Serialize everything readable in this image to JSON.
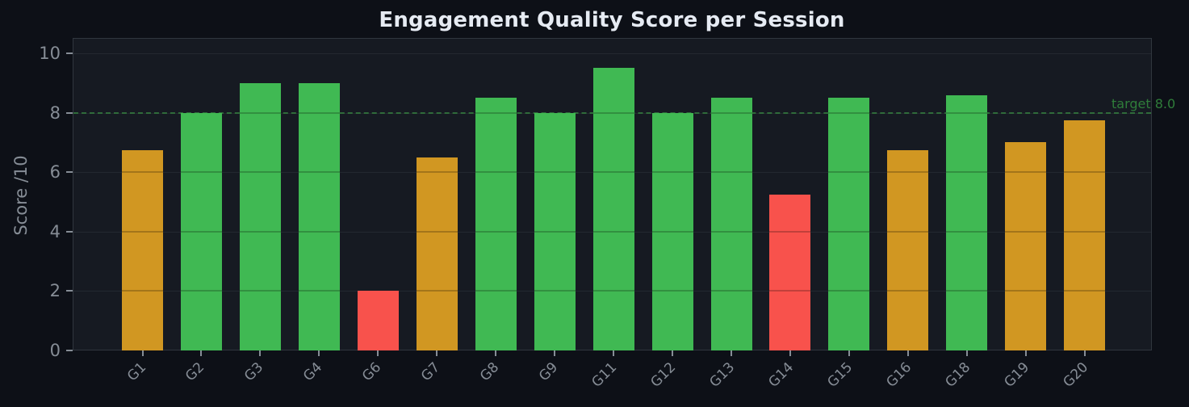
{
  "chart_data": {
    "type": "bar",
    "title": "Engagement Quality Score per Session",
    "xlabel": "",
    "ylabel": "Score /10",
    "ylim": [
      0,
      10.5
    ],
    "yticks": [
      0,
      2,
      4,
      6,
      8,
      10
    ],
    "grid": true,
    "categories": [
      "G1",
      "G2",
      "G3",
      "G4",
      "G6",
      "G7",
      "G8",
      "G9",
      "G11",
      "G12",
      "G13",
      "G14",
      "G15",
      "G16",
      "G18",
      "G19",
      "G20"
    ],
    "values": [
      6.75,
      8.0,
      9.0,
      9.0,
      2.0,
      6.5,
      8.5,
      8.0,
      9.5,
      8.0,
      8.5,
      5.25,
      8.5,
      6.75,
      8.6,
      7.0,
      7.75
    ],
    "bar_colors": [
      "#d19722",
      "#40b953",
      "#40b953",
      "#40b953",
      "#f8524c",
      "#d19722",
      "#40b953",
      "#40b953",
      "#40b953",
      "#40b953",
      "#40b953",
      "#f8524c",
      "#40b953",
      "#d19722",
      "#40b953",
      "#d19722",
      "#d19722"
    ],
    "color_legend": {
      "good": "#40b953",
      "warning": "#d19722",
      "poor": "#f8524c"
    },
    "reference_line": {
      "value": 8.0,
      "label": "target 8.0",
      "style": "dashed",
      "color": "#2f6b3a"
    },
    "legend": null
  }
}
